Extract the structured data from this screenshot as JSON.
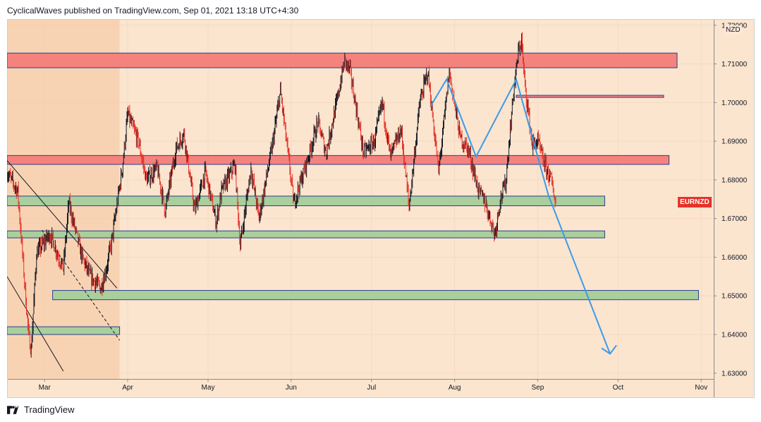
{
  "header": {
    "publisher_line": "CyclicalWaves published on TradingView.com, Sep 01, 2021 13:18 UTC+4:30"
  },
  "footer": {
    "brand": "TradingView"
  },
  "chart_data": {
    "type": "line",
    "symbol": "EURNZD",
    "currency": "NZD",
    "x_ticks": [
      "Mar",
      "Apr",
      "May",
      "Jun",
      "Jul",
      "Aug",
      "Sep",
      "Oct",
      "Nov"
    ],
    "y_ticks": [
      "1.63000",
      "1.64000",
      "1.65000",
      "1.66000",
      "1.67000",
      "1.68000",
      "1.69000",
      "1.70000",
      "1.71000",
      "1.72000"
    ],
    "ylim": [
      1.6285,
      1.7216
    ],
    "colors": {
      "background": "#fbe5cf",
      "candle_up": "#131722",
      "candle_down": "#e5332a",
      "resistance_zone": "#f4837d",
      "support_zone": "#a9cf9c",
      "projection": "#3d9be9",
      "grid": "#f5d9c0"
    },
    "price_path": [
      [
        "2021-02-15",
        1.682
      ],
      [
        "2021-02-19",
        1.677
      ],
      [
        "2021-02-23",
        1.64
      ],
      [
        "2021-02-24",
        1.636
      ],
      [
        "2021-02-26",
        1.661
      ],
      [
        "2021-03-03",
        1.666
      ],
      [
        "2021-03-08",
        1.657
      ],
      [
        "2021-03-10",
        1.674
      ],
      [
        "2021-03-15",
        1.66
      ],
      [
        "2021-03-18",
        1.655
      ],
      [
        "2021-03-22",
        1.652
      ],
      [
        "2021-03-24",
        1.657
      ],
      [
        "2021-03-26",
        1.664
      ],
      [
        "2021-03-30",
        1.683
      ],
      [
        "2021-04-01",
        1.697
      ],
      [
        "2021-04-05",
        1.69
      ],
      [
        "2021-04-08",
        1.68
      ],
      [
        "2021-04-12",
        1.683
      ],
      [
        "2021-04-15",
        1.672
      ],
      [
        "2021-04-19",
        1.688
      ],
      [
        "2021-04-22",
        1.692
      ],
      [
        "2021-04-26",
        1.672
      ],
      [
        "2021-04-30",
        1.682
      ],
      [
        "2021-05-04",
        1.669
      ],
      [
        "2021-05-06",
        1.677
      ],
      [
        "2021-05-11",
        1.684
      ],
      [
        "2021-05-13",
        1.663
      ],
      [
        "2021-05-17",
        1.683
      ],
      [
        "2021-05-20",
        1.67
      ],
      [
        "2021-05-25",
        1.689
      ],
      [
        "2021-05-28",
        1.703
      ],
      [
        "2021-06-02",
        1.674
      ],
      [
        "2021-06-07",
        1.685
      ],
      [
        "2021-06-11",
        1.695
      ],
      [
        "2021-06-14",
        1.687
      ],
      [
        "2021-06-18",
        1.7
      ],
      [
        "2021-06-21",
        1.711
      ],
      [
        "2021-06-23",
        1.708
      ],
      [
        "2021-06-28",
        1.687
      ],
      [
        "2021-07-02",
        1.69
      ],
      [
        "2021-07-05",
        1.7
      ],
      [
        "2021-07-08",
        1.686
      ],
      [
        "2021-07-12",
        1.693
      ],
      [
        "2021-07-15",
        1.673
      ],
      [
        "2021-07-19",
        1.7
      ],
      [
        "2021-07-22",
        1.708
      ],
      [
        "2021-07-26",
        1.682
      ],
      [
        "2021-07-30",
        1.708
      ],
      [
        "2021-08-03",
        1.691
      ],
      [
        "2021-08-06",
        1.688
      ],
      [
        "2021-08-10",
        1.677
      ],
      [
        "2021-08-12",
        1.675
      ],
      [
        "2021-08-16",
        1.666
      ],
      [
        "2021-08-18",
        1.675
      ],
      [
        "2021-08-20",
        1.679
      ],
      [
        "2021-08-23",
        1.703
      ],
      [
        "2021-08-25",
        1.714
      ],
      [
        "2021-08-26",
        1.716
      ],
      [
        "2021-08-27",
        1.706
      ],
      [
        "2021-08-30",
        1.689
      ],
      [
        "2021-09-01",
        1.69
      ],
      [
        "2021-09-03",
        1.685
      ],
      [
        "2021-09-06",
        1.68
      ],
      [
        "2021-09-08",
        1.673
      ]
    ],
    "zones": [
      {
        "kind": "resistance",
        "from": "2021-02-15",
        "to": "2021-10-23",
        "low": 1.709,
        "high": 1.7128
      },
      {
        "kind": "resistance",
        "from": "2021-02-15",
        "to": "2021-10-20",
        "low": 1.684,
        "high": 1.6863
      },
      {
        "kind": "support",
        "from": "2021-02-15",
        "to": "2021-09-26",
        "low": 1.6733,
        "high": 1.6758
      },
      {
        "kind": "support",
        "from": "2021-02-15",
        "to": "2021-09-26",
        "low": 1.665,
        "high": 1.6668
      },
      {
        "kind": "support",
        "from": "2021-03-04",
        "to": "2021-10-31",
        "low": 1.649,
        "high": 1.6514
      },
      {
        "kind": "support",
        "from": "2021-02-15",
        "to": "2021-03-29",
        "low": 1.64,
        "high": 1.642
      }
    ],
    "level_line": {
      "from": "2021-08-24",
      "to": "2021-10-18",
      "value": 1.7016
    },
    "projection_path": [
      [
        "2021-07-23",
        1.699
      ],
      [
        "2021-07-29",
        1.706
      ],
      [
        "2021-08-09",
        1.686
      ],
      [
        "2021-08-24",
        1.706
      ],
      [
        "2021-09-05",
        1.676
      ],
      [
        "2021-09-28",
        1.635
      ]
    ],
    "channel": {
      "upper": [
        [
          "2021-02-15",
          1.685
        ],
        [
          "2021-03-28",
          1.652
        ]
      ],
      "lower": [
        [
          "2021-02-15",
          1.655
        ],
        [
          "2021-03-08",
          1.6305
        ]
      ],
      "middle": [
        [
          "2021-02-28",
          1.667
        ],
        [
          "2021-03-29",
          1.6385
        ]
      ]
    },
    "shaded_region": {
      "from": "2021-02-15",
      "to": "2021-03-29"
    }
  }
}
